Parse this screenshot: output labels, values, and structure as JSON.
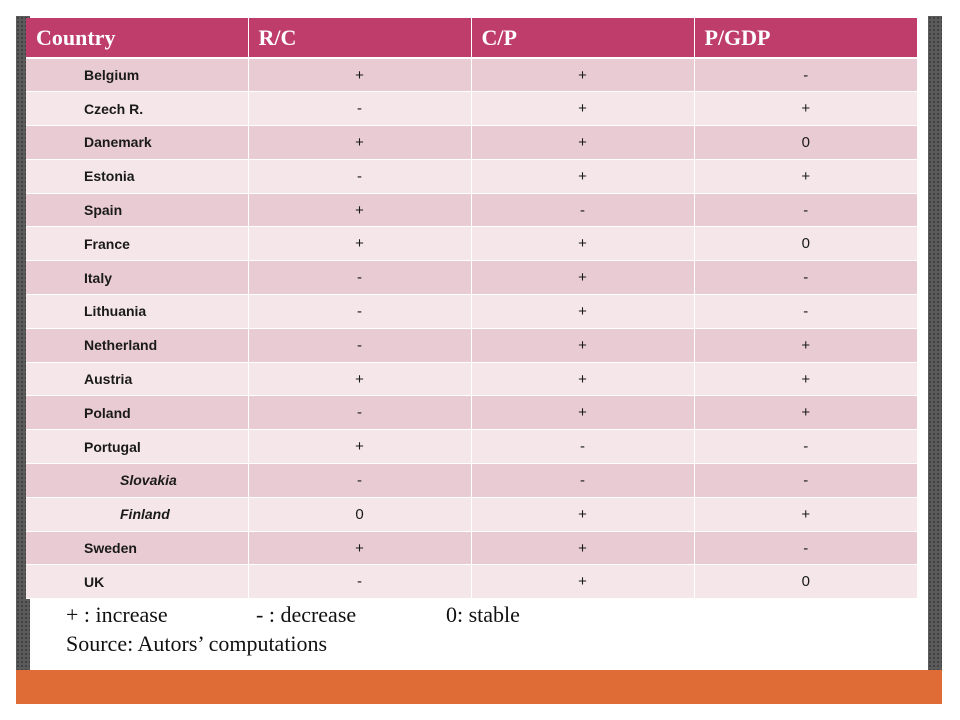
{
  "table": {
    "headers": [
      "Country",
      "R/C",
      "C/P",
      "P/GDP"
    ],
    "rows": [
      {
        "country": "Belgium",
        "rc": "+",
        "cp": "+",
        "pgdp": "-"
      },
      {
        "country": "Czech R.",
        "rc": "-",
        "cp": "+",
        "pgdp": "+"
      },
      {
        "country": "Danemark",
        "rc": "+",
        "cp": "+",
        "pgdp": "0"
      },
      {
        "country": "Estonia",
        "rc": "-",
        "cp": "+",
        "pgdp": "+"
      },
      {
        "country": "Spain",
        "rc": "+",
        "cp": "-",
        "pgdp": "-"
      },
      {
        "country": "France",
        "rc": "+",
        "cp": "+",
        "pgdp": "0"
      },
      {
        "country": "Italy",
        "rc": "-",
        "cp": "+",
        "pgdp": "-"
      },
      {
        "country": "Lithuania",
        "rc": "-",
        "cp": "+",
        "pgdp": "-"
      },
      {
        "country": "Netherland",
        "rc": "-",
        "cp": "+",
        "pgdp": "+"
      },
      {
        "country": "Austria",
        "rc": "+",
        "cp": "+",
        "pgdp": "+"
      },
      {
        "country": "Poland",
        "rc": "-",
        "cp": "+",
        "pgdp": "+"
      },
      {
        "country": "Portugal",
        "rc": "+",
        "cp": "-",
        "pgdp": "-"
      },
      {
        "country": "Slovakia",
        "rc": "-",
        "cp": "-",
        "pgdp": "-",
        "italic": true
      },
      {
        "country": "Finland",
        "rc": "0",
        "cp": "+",
        "pgdp": "+",
        "italic": true
      },
      {
        "country": "Sweden",
        "rc": "+",
        "cp": "+",
        "pgdp": "-"
      },
      {
        "country": "UK",
        "rc": "-",
        "cp": "+",
        "pgdp": "0"
      }
    ]
  },
  "legend": {
    "increase": "+ : increase",
    "decrease": "- : decrease",
    "stable": "0: stable",
    "source": "Source: Autors’ computations"
  },
  "colors": {
    "header": "#bf3d6b",
    "row_dark": "#e9ccd3",
    "row_light": "#f4e6e9",
    "frame": "#5b5b5b",
    "bottom_bar": "#df6b37"
  }
}
